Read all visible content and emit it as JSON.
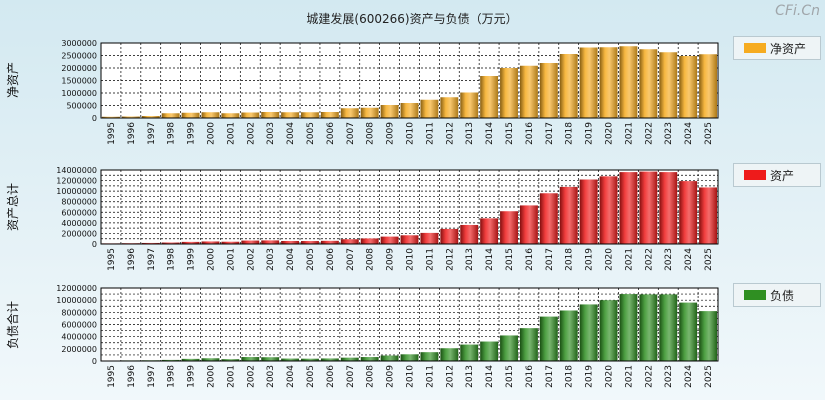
{
  "title": "城建发展(600266)资产与负债（万元）",
  "watermark": "CFi.Cn",
  "chart_data": [
    {
      "type": "bar",
      "ylabel": "净资产",
      "legend": "净资产",
      "color": "#f6ab20",
      "ylim": [
        0,
        3000000
      ],
      "yticks": [
        0,
        500000,
        1000000,
        1500000,
        2000000,
        2500000,
        3000000
      ],
      "ytick_labels": [
        "0",
        "500000",
        "1000000",
        "1500000",
        "2000000",
        "2500000",
        "3000000"
      ],
      "categories": [
        "1995",
        "1996",
        "1997",
        "1998",
        "1999",
        "2000",
        "2001",
        "2002",
        "2003",
        "2004",
        "2005",
        "2006",
        "2007",
        "2008",
        "2009",
        "2010",
        "2011",
        "2012",
        "2013",
        "2014",
        "2015",
        "2016",
        "2017",
        "2018",
        "2019",
        "2020",
        "2021",
        "2022",
        "2023",
        "2024",
        "2025"
      ],
      "values": [
        50000,
        60000,
        80000,
        190000,
        210000,
        230000,
        190000,
        220000,
        240000,
        230000,
        230000,
        240000,
        390000,
        410000,
        520000,
        600000,
        730000,
        830000,
        1020000,
        1680000,
        2000000,
        2090000,
        2200000,
        2560000,
        2820000,
        2830000,
        2870000,
        2750000,
        2630000,
        2480000,
        2550000
      ],
      "grid": true,
      "legend_position": "right"
    },
    {
      "type": "bar",
      "ylabel": "资产总计",
      "legend": "资产",
      "color": "#ee1b1b",
      "ylim": [
        0,
        14000000
      ],
      "yticks": [
        0,
        2000000,
        4000000,
        6000000,
        8000000,
        10000000,
        12000000,
        14000000
      ],
      "ytick_labels": [
        "0",
        "2000000",
        "4000000",
        "6000000",
        "8000000",
        "10000000",
        "12000000",
        "14000000"
      ],
      "minor_ytick_step": 1000000,
      "categories": [
        "1995",
        "1996",
        "1997",
        "1998",
        "1999",
        "2000",
        "2001",
        "2002",
        "2003",
        "2004",
        "2005",
        "2006",
        "2007",
        "2008",
        "2009",
        "2010",
        "2011",
        "2012",
        "2013",
        "2014",
        "2015",
        "2016",
        "2017",
        "2018",
        "2019",
        "2020",
        "2021",
        "2022",
        "2023",
        "2024",
        "2025"
      ],
      "values": [
        120000,
        150000,
        200000,
        280000,
        400000,
        480000,
        430000,
        650000,
        680000,
        570000,
        560000,
        600000,
        900000,
        1050000,
        1400000,
        1650000,
        2100000,
        2850000,
        3600000,
        4850000,
        6200000,
        7300000,
        9600000,
        10800000,
        12200000,
        12800000,
        13600000,
        13700000,
        13600000,
        11900000,
        10700000
      ],
      "grid": true,
      "legend_position": "right"
    },
    {
      "type": "bar",
      "ylabel": "负债合计",
      "legend": "负债",
      "color": "#2f8f22",
      "ylim": [
        0,
        12000000
      ],
      "yticks": [
        0,
        2000000,
        4000000,
        6000000,
        8000000,
        10000000,
        12000000
      ],
      "ytick_labels": [
        "0",
        "2000000",
        "4000000",
        "6000000",
        "8000000",
        "10000000",
        "12000000"
      ],
      "minor_ytick_step": 1000000,
      "categories": [
        "1995",
        "1996",
        "1997",
        "1998",
        "1999",
        "2000",
        "2001",
        "2002",
        "2003",
        "2004",
        "2005",
        "2006",
        "2007",
        "2008",
        "2009",
        "2010",
        "2011",
        "2012",
        "2013",
        "2014",
        "2015",
        "2016",
        "2017",
        "2018",
        "2019",
        "2020",
        "2021",
        "2022",
        "2023",
        "2024",
        "2025"
      ],
      "values": [
        80000,
        100000,
        120000,
        180000,
        350000,
        450000,
        300000,
        650000,
        620000,
        400000,
        380000,
        420000,
        550000,
        650000,
        900000,
        1100000,
        1450000,
        2100000,
        2700000,
        3200000,
        4200000,
        5400000,
        7300000,
        8300000,
        9300000,
        10000000,
        11000000,
        10950000,
        10950000,
        9600000,
        8200000
      ],
      "grid": true,
      "legend_position": "right"
    }
  ]
}
